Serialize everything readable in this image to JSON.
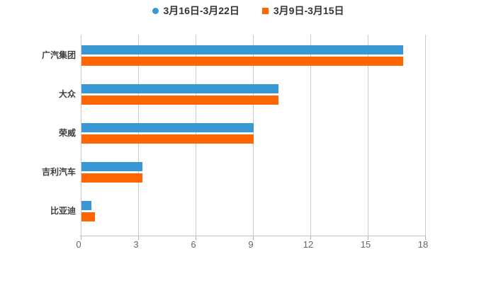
{
  "legend": {
    "items": [
      {
        "label": "3月16日-3月22日",
        "marker": "circle",
        "color": "#3898d4"
      },
      {
        "label": "3月9日-3月15日",
        "marker": "square",
        "color": "#ff6600"
      }
    ]
  },
  "chart_data": {
    "type": "bar",
    "orientation": "horizontal",
    "title": "",
    "xlabel": "",
    "ylabel": "",
    "categories": [
      "广汽集团",
      "大众",
      "荣威",
      "吉利汽车",
      "比亚迪"
    ],
    "series": [
      {
        "name": "3月16日-3月22日",
        "marker": "circle",
        "color": "#3898d4",
        "values": [
          16.8,
          10.3,
          9.0,
          3.2,
          0.5
        ]
      },
      {
        "name": "3月9日-3月15日",
        "marker": "square",
        "color": "#ff6600",
        "values": [
          16.8,
          10.3,
          9.0,
          3.2,
          0.7
        ]
      }
    ],
    "xticks": [
      0,
      3,
      6,
      9,
      12,
      15,
      18
    ],
    "xlim": [
      0,
      18
    ],
    "grid": "vertical",
    "legend_position": "top-center",
    "colors": {
      "gridline": "#cccccc",
      "axis_line": "#c3c3c3",
      "tick_label": "#666666",
      "category_label": "#3f3f3f",
      "legend_text": "#333333",
      "background": "#ffffff"
    }
  }
}
